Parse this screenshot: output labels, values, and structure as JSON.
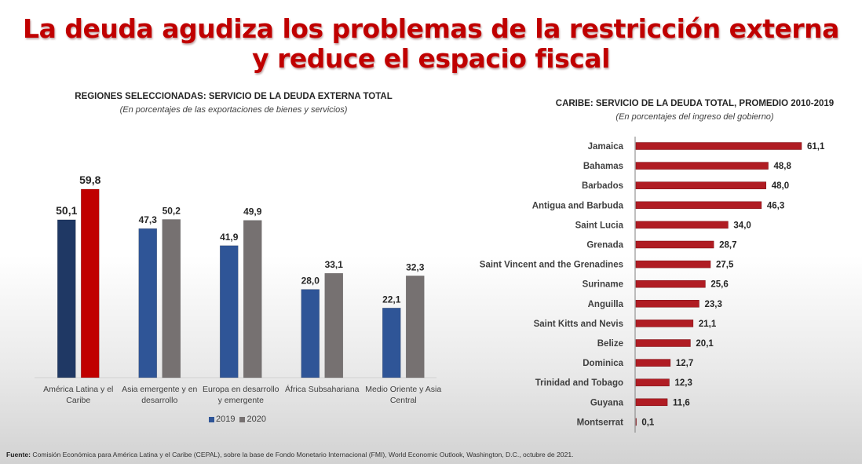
{
  "slide": {
    "title_line1": "La deuda agudiza los problemas de la restricción externa",
    "title_line2": "y reduce el espacio fiscal",
    "footnote_label": "Fuente:",
    "footnote_text": " Comisión Económica para América Latina y el Caribe (CEPAL), sobre la base de Fondo Monetario Internacional (FMI), World Economic Outlook, Washington, D.C., octubre de 2021."
  },
  "colors": {
    "title_red": "#c00000",
    "series_2019": "#2f5597",
    "series_2020": "#767171",
    "highlight_2019": "#1f3864",
    "highlight_2020": "#c00000",
    "caribe_bar": "#b01c23"
  },
  "chart_data": [
    {
      "type": "bar",
      "title": "REGIONES SELECCIONADAS: SERVICIO DE LA DEUDA EXTERNA TOTAL",
      "subtitle": "(En porcentajes de las exportaciones de bienes y servicios)",
      "categories": [
        [
          "América Latina y el",
          "Caribe"
        ],
        [
          "Asia emergente y en",
          "desarrollo"
        ],
        [
          "Europa en desarrollo",
          "y emergente"
        ],
        [
          "África Subsahariana"
        ],
        [
          "Medio Oriente y Asia",
          "Central"
        ]
      ],
      "series": [
        {
          "name": "2019",
          "values": [
            50.1,
            47.3,
            41.9,
            28.0,
            22.1
          ],
          "labels": [
            "50,1",
            "47,3",
            "41,9",
            "28,0",
            "22,1"
          ]
        },
        {
          "name": "2020",
          "values": [
            59.8,
            50.2,
            49.9,
            33.1,
            32.3
          ],
          "labels": [
            "59,8",
            "50,2",
            "49,9",
            "33,1",
            "32,3"
          ]
        }
      ],
      "highlight_category": 0,
      "ylim": [
        0,
        70
      ],
      "legend": [
        "2019",
        "2020"
      ],
      "legend_position": "bottom",
      "grid": false,
      "xlabel": "",
      "ylabel": ""
    },
    {
      "type": "bar",
      "orientation": "horizontal",
      "title": "CARIBE: SERVICIO DE LA DEUDA TOTAL, PROMEDIO 2010-2019",
      "subtitle": "(En porcentajes del ingreso del gobierno)",
      "categories": [
        "Jamaica",
        "Bahamas",
        "Barbados",
        "Antigua and Barbuda",
        "Saint Lucia",
        "Grenada",
        "Saint Vincent and the Grenadines",
        "Suriname",
        "Anguilla",
        "Saint Kitts and Nevis",
        "Belize",
        "Dominica",
        "Trinidad and Tobago",
        "Guyana",
        "Montserrat"
      ],
      "values": [
        61.1,
        48.8,
        48.0,
        46.3,
        34.0,
        28.7,
        27.5,
        25.6,
        23.3,
        21.1,
        20.1,
        12.7,
        12.3,
        11.6,
        0.1
      ],
      "labels": [
        "61,1",
        "48,8",
        "48,0",
        "46,3",
        "34,0",
        "28,7",
        "27,5",
        "25,6",
        "23,3",
        "21,1",
        "20,1",
        "12,7",
        "12,3",
        "11,6",
        "0,1"
      ],
      "xlim": [
        0,
        65
      ],
      "grid": false,
      "xlabel": "",
      "ylabel": ""
    }
  ]
}
